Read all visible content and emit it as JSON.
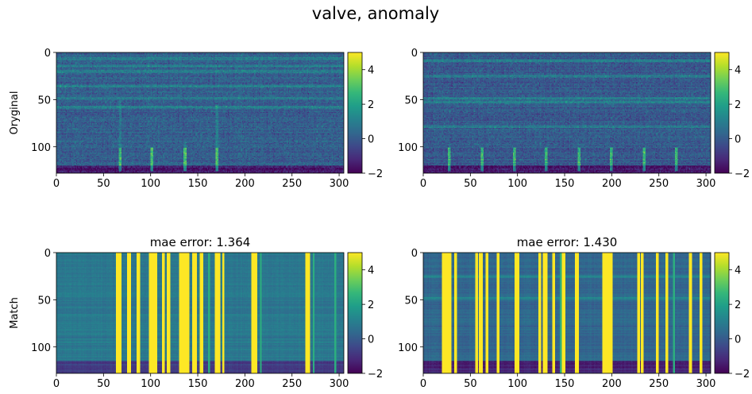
{
  "figure": {
    "title": "valve, anomaly"
  },
  "colormap": {
    "name": "viridis",
    "stops": [
      "#440154",
      "#482878",
      "#3e4989",
      "#31688e",
      "#26828e",
      "#1f9e89",
      "#35b779",
      "#6ece58",
      "#b5de2b",
      "#fde725"
    ]
  },
  "chart_data": [
    {
      "type": "heatmap",
      "panel": "top-left",
      "title": "",
      "ylabel": "Oryginal",
      "xlim": [
        0,
        305
      ],
      "ylim": [
        128,
        0
      ],
      "xticks": [
        0,
        50,
        100,
        150,
        200,
        250,
        300
      ],
      "yticks": [
        0,
        50,
        100
      ],
      "colorbar": {
        "range": [
          -2,
          5
        ],
        "ticks": [
          -2,
          0,
          2,
          4
        ]
      },
      "background_level": 0.1,
      "dark_rows": [
        120,
        128
      ],
      "bright_rows": [
        6,
        14,
        20,
        35,
        48,
        58
      ],
      "vertical_streaks": [
        {
          "x": 67,
          "y0": 50,
          "y1": 125,
          "level": 1.6
        },
        {
          "x": 101,
          "y0": 100,
          "y1": 125,
          "level": 1.8
        },
        {
          "x": 136,
          "y0": 95,
          "y1": 125,
          "level": 1.8
        },
        {
          "x": 170,
          "y0": 55,
          "y1": 125,
          "level": 1.8
        }
      ]
    },
    {
      "type": "heatmap",
      "panel": "top-right",
      "title": "",
      "ylabel": "",
      "xlim": [
        0,
        305
      ],
      "ylim": [
        128,
        0
      ],
      "xticks": [
        0,
        50,
        100,
        150,
        200,
        250,
        300
      ],
      "yticks": [
        0,
        50,
        100
      ],
      "colorbar": {
        "range": [
          -2,
          5
        ],
        "ticks": [
          -2,
          0,
          2,
          4
        ]
      },
      "background_level": 0.0,
      "dark_rows": [
        120,
        128
      ],
      "bright_rows": [
        8,
        25,
        48,
        52,
        78
      ],
      "vertical_streaks": [
        {
          "x": 27,
          "y0": 100,
          "y1": 125,
          "level": 1.7
        },
        {
          "x": 62,
          "y0": 100,
          "y1": 125,
          "level": 1.7
        },
        {
          "x": 96,
          "y0": 100,
          "y1": 125,
          "level": 1.7
        },
        {
          "x": 130,
          "y0": 100,
          "y1": 125,
          "level": 1.7
        },
        {
          "x": 165,
          "y0": 100,
          "y1": 125,
          "level": 1.7
        },
        {
          "x": 199,
          "y0": 100,
          "y1": 125,
          "level": 1.7
        },
        {
          "x": 234,
          "y0": 100,
          "y1": 125,
          "level": 1.7
        },
        {
          "x": 268,
          "y0": 100,
          "y1": 125,
          "level": 1.7
        }
      ]
    },
    {
      "type": "heatmap",
      "panel": "bottom-left",
      "title": "mae error: 1.364",
      "ylabel": "Match",
      "xlim": [
        0,
        305
      ],
      "ylim": [
        128,
        0
      ],
      "xticks": [
        0,
        50,
        100,
        150,
        200,
        250,
        300
      ],
      "yticks": [
        0,
        50,
        100
      ],
      "colorbar": {
        "range": [
          -2,
          5
        ],
        "ticks": [
          -2,
          0,
          2,
          4
        ]
      },
      "background_level": 0.8,
      "dark_rows": [
        115,
        128
      ],
      "bright_rows": [],
      "saturated_columns": [
        [
          63,
          68
        ],
        [
          75,
          78
        ],
        [
          85,
          88
        ],
        [
          98,
          106
        ],
        [
          112,
          114
        ],
        [
          117,
          120
        ],
        [
          130,
          140
        ],
        [
          144,
          148
        ],
        [
          152,
          155
        ],
        [
          168,
          173
        ],
        [
          176,
          177
        ],
        [
          207,
          212
        ],
        [
          264,
          268
        ]
      ],
      "faint_columns": [
        [
          161,
          162
        ],
        [
          216,
          217
        ],
        [
          272,
          273
        ],
        [
          295,
          296
        ]
      ]
    },
    {
      "type": "heatmap",
      "panel": "bottom-right",
      "title": "mae error: 1.430",
      "ylabel": "",
      "xlim": [
        0,
        305
      ],
      "ylim": [
        128,
        0
      ],
      "xticks": [
        0,
        50,
        100,
        150,
        200,
        250,
        300
      ],
      "yticks": [
        0,
        50,
        100
      ],
      "colorbar": {
        "range": [
          -2,
          5
        ],
        "ticks": [
          -2,
          0,
          2,
          4
        ]
      },
      "background_level": 0.3,
      "dark_rows": [
        115,
        128
      ],
      "bright_rows": [
        25,
        48
      ],
      "saturated_columns": [
        [
          20,
          29
        ],
        [
          33,
          35
        ],
        [
          55,
          57
        ],
        [
          59,
          62
        ],
        [
          66,
          68
        ],
        [
          78,
          80
        ],
        [
          97,
          101
        ],
        [
          122,
          124
        ],
        [
          127,
          131
        ],
        [
          137,
          139
        ],
        [
          147,
          150
        ],
        [
          161,
          164
        ],
        [
          190,
          200
        ],
        [
          227,
          229
        ],
        [
          231,
          233
        ],
        [
          247,
          249
        ],
        [
          257,
          259
        ],
        [
          282,
          284
        ],
        [
          293,
          295
        ]
      ],
      "faint_columns": [
        [
          145,
          146
        ],
        [
          265,
          266
        ]
      ]
    }
  ]
}
